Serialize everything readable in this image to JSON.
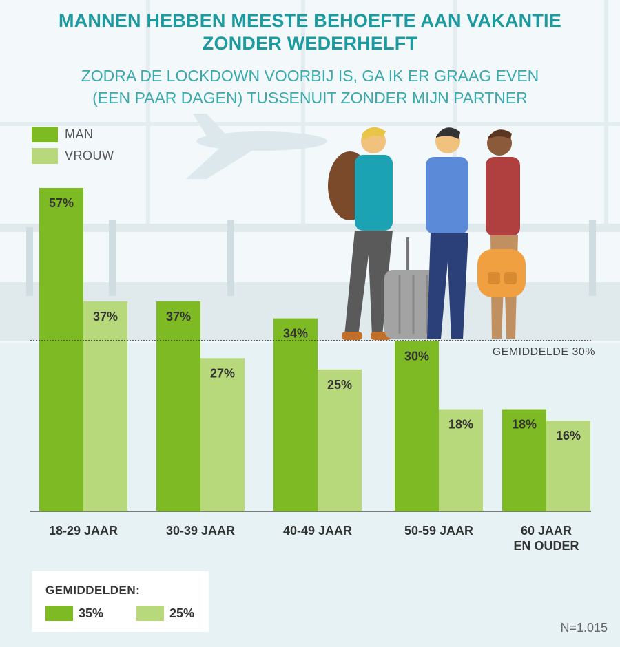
{
  "title_line1": "MANNEN HEBBEN MEESTE BEHOEFTE AAN VAKANTIE",
  "title_line2": "ZONDER WEDERHELFT",
  "subtitle_line1": "ZODRA DE LOCKDOWN VOORBIJ IS, GA IK ER GRAAG EVEN",
  "subtitle_line2": "(EEN PAAR DAGEN) TUSSENUIT ZONDER MIJN PARTNER",
  "legend": {
    "man": "MAN",
    "vrouw": "VROUW"
  },
  "colors": {
    "man": "#7dba24",
    "vrouw": "#b8d97b",
    "title": "#1b9ba0",
    "background": "#e6f2f4"
  },
  "average_line_label": "GEMIDDELDE 30%",
  "averages_box": {
    "title": "GEMIDDELDEN:",
    "man": "35%",
    "vrouw": "25%"
  },
  "sample_size": "N=1.015",
  "chart_data": {
    "type": "bar",
    "categories": [
      "18-29 JAAR",
      "30-39 JAAR",
      "40-49 JAAR",
      "50-59 JAAR",
      "60 JAAR EN OUDER"
    ],
    "category_lines": [
      [
        "18-29 JAAR"
      ],
      [
        "30-39 JAAR"
      ],
      [
        "40-49 JAAR"
      ],
      [
        "50-59 JAAR"
      ],
      [
        "60 JAAR",
        "EN OUDER"
      ]
    ],
    "series": [
      {
        "name": "MAN",
        "values": [
          57,
          37,
          34,
          30,
          18
        ],
        "labels": [
          "57%",
          "37%",
          "34%",
          "30%",
          "18%"
        ]
      },
      {
        "name": "VROUW",
        "values": [
          37,
          27,
          25,
          18,
          16
        ],
        "labels": [
          "37%",
          "27%",
          "25%",
          "18%",
          "16%"
        ]
      }
    ],
    "reference_line": 30,
    "ylim": [
      0,
      57
    ],
    "grid": false
  }
}
